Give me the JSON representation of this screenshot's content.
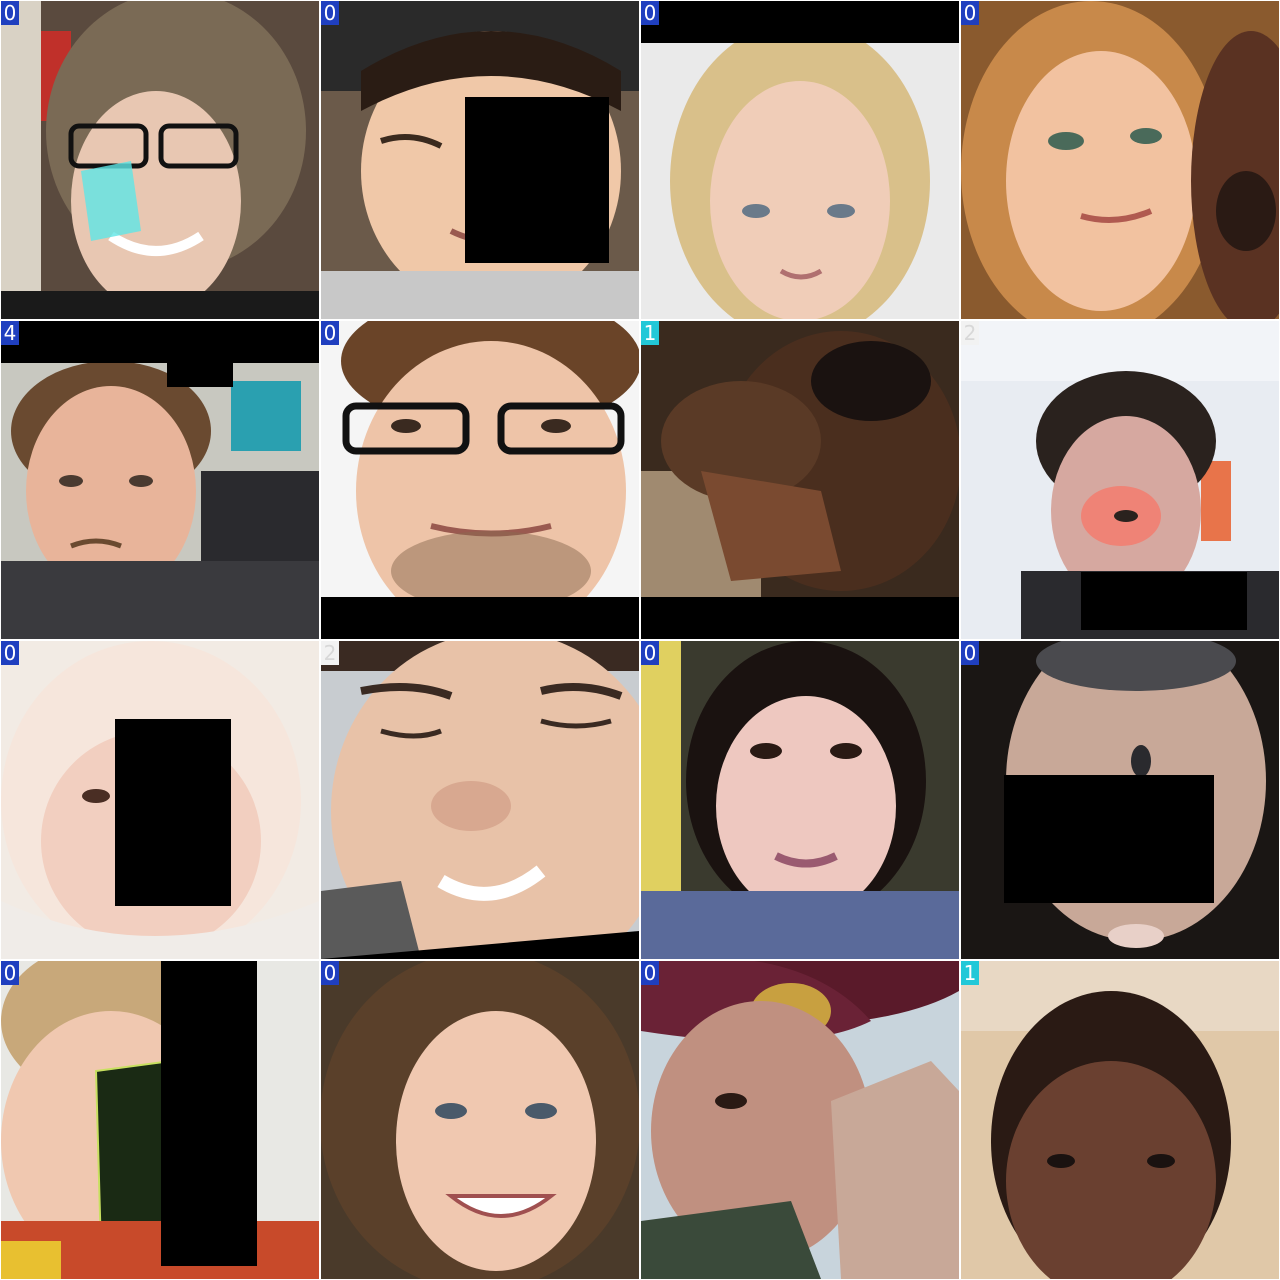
{
  "grid": {
    "tiles": [
      {
        "label": "0",
        "label_color": "#1f3fbf",
        "subject": "woman-glasses-smiling"
      },
      {
        "label": "0",
        "label_color": "#1f3fbf",
        "subject": "woman-smiling"
      },
      {
        "label": "0",
        "label_color": "#1f3fbf",
        "subject": "blonde-woman"
      },
      {
        "label": "0",
        "label_color": "#1f3fbf",
        "subject": "young-woman-with-horse"
      },
      {
        "label": "4",
        "label_color": "#1f3fbf",
        "subject": "young-man-mustache"
      },
      {
        "label": "0",
        "label_color": "#1f3fbf",
        "subject": "man-glasses"
      },
      {
        "label": "1",
        "label_color": "#22c8d8",
        "subject": "man-hand-on-face"
      },
      {
        "label": "2",
        "label_color": "#f2f2f2",
        "subject": "teen-boy"
      },
      {
        "label": "0",
        "label_color": "#1f3fbf",
        "subject": "child-white-hair"
      },
      {
        "label": "2",
        "label_color": "#f2f2f2",
        "subject": "man-closeup-smiling"
      },
      {
        "label": "0",
        "label_color": "#1f3fbf",
        "subject": "woman-makeup"
      },
      {
        "label": "0",
        "label_color": "#1f3fbf",
        "subject": "baby-face"
      },
      {
        "label": "0",
        "label_color": "#1f3fbf",
        "subject": "child-face-inverted"
      },
      {
        "label": "0",
        "label_color": "#1f3fbf",
        "subject": "woman-curly-hair"
      },
      {
        "label": "0",
        "label_color": "#1f3fbf",
        "subject": "soldier-saluting"
      },
      {
        "label": "1",
        "label_color": "#22c8d8",
        "subject": "man-closeup"
      }
    ]
  }
}
